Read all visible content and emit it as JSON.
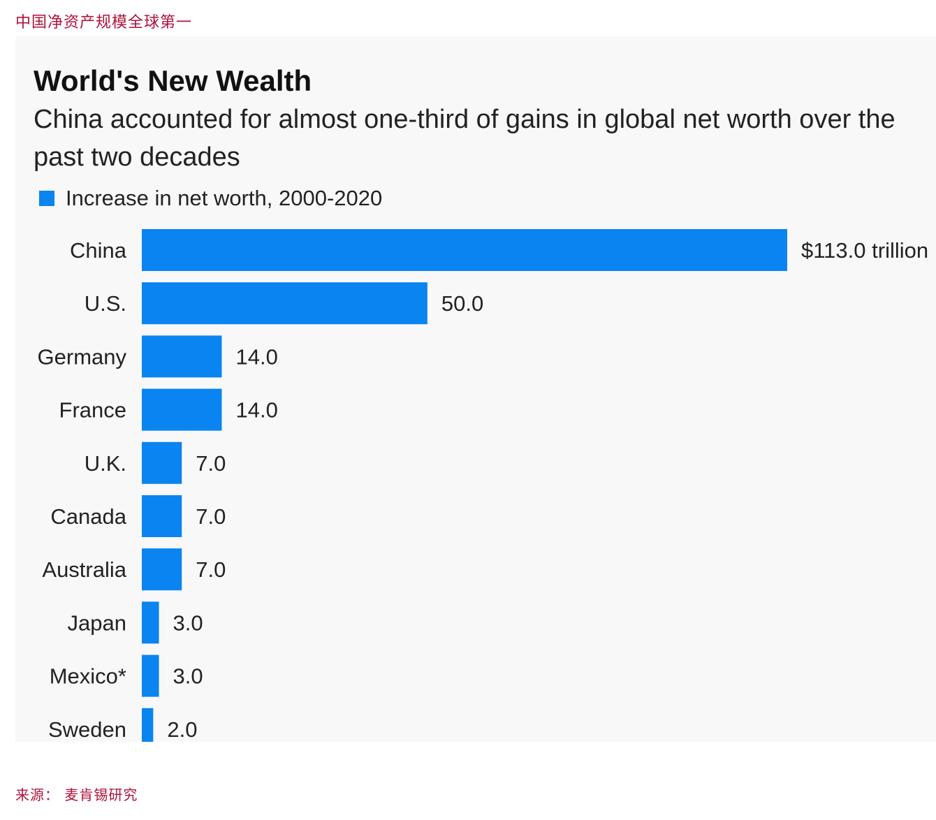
{
  "header": {
    "title": "中国净资产规模全球第一"
  },
  "footer": {
    "source": "来源： 麦肯锡研究"
  },
  "colors": {
    "bar": "#0a84f0",
    "accent": "#b0123b"
  },
  "chart_data": {
    "type": "bar",
    "orientation": "horizontal",
    "title": "World's New Wealth",
    "subtitle": "China accounted for almost one-third of gains in global net worth over the past two decades",
    "legend": [
      "Increase in net worth, 2000-2020"
    ],
    "categories": [
      "China",
      "U.S.",
      "Germany",
      "France",
      "U.K.",
      "Canada",
      "Australia",
      "Japan",
      "Mexico*",
      "Sweden"
    ],
    "values": [
      113.0,
      50.0,
      14.0,
      14.0,
      7.0,
      7.0,
      7.0,
      3.0,
      3.0,
      2.0
    ],
    "value_labels": [
      "$113.0 trillion",
      "50.0",
      "14.0",
      "14.0",
      "7.0",
      "7.0",
      "7.0",
      "3.0",
      "3.0",
      "2.0"
    ],
    "unit": "trillion USD",
    "xlim": [
      0,
      113.0
    ],
    "grid": false
  }
}
